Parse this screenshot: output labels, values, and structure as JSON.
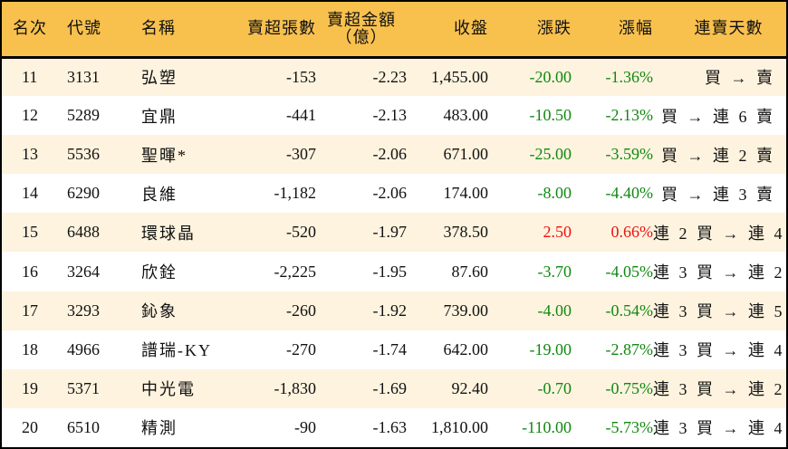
{
  "header": {
    "rank": "名次",
    "code": "代號",
    "name": "名稱",
    "net_sell_volume": "賣超張數",
    "net_sell_amount_line1": "賣超金額",
    "net_sell_amount_line2": "（億）",
    "close": "收盤",
    "change": "漲跌",
    "change_pct": "漲幅",
    "streak": "連賣天數"
  },
  "colors": {
    "header_bg": "#f8c14e",
    "row_alt_bg": "#fdf3df",
    "row_bg": "#ffffff",
    "down": "#118811",
    "up": "#ee1111",
    "border": "#000000"
  },
  "rows": [
    {
      "rank": "11",
      "code": "3131",
      "name": "弘塑",
      "volume": "-153",
      "amount": "-2.23",
      "close": "1,455.00",
      "change": "-20.00",
      "pct": "-1.36%",
      "direction": "down",
      "streak": "買 → 賣"
    },
    {
      "rank": "12",
      "code": "5289",
      "name": "宜鼎",
      "volume": "-441",
      "amount": "-2.13",
      "close": "483.00",
      "change": "-10.50",
      "pct": "-2.13%",
      "direction": "down",
      "streak": "買 → 連 6 賣"
    },
    {
      "rank": "13",
      "code": "5536",
      "name": "聖暉*",
      "volume": "-307",
      "amount": "-2.06",
      "close": "671.00",
      "change": "-25.00",
      "pct": "-3.59%",
      "direction": "down",
      "streak": "買 → 連 2 賣"
    },
    {
      "rank": "14",
      "code": "6290",
      "name": "良維",
      "volume": "-1,182",
      "amount": "-2.06",
      "close": "174.00",
      "change": "-8.00",
      "pct": "-4.40%",
      "direction": "down",
      "streak": "買 → 連 3 賣"
    },
    {
      "rank": "15",
      "code": "6488",
      "name": "環球晶",
      "volume": "-520",
      "amount": "-1.97",
      "close": "378.50",
      "change": "2.50",
      "pct": "0.66%",
      "direction": "up",
      "streak": "連 2 買 → 連 4 賣"
    },
    {
      "rank": "16",
      "code": "3264",
      "name": "欣銓",
      "volume": "-2,225",
      "amount": "-1.95",
      "close": "87.60",
      "change": "-3.70",
      "pct": "-4.05%",
      "direction": "down",
      "streak": "連 3 買 → 連 2 賣"
    },
    {
      "rank": "17",
      "code": "3293",
      "name": "鈊象",
      "volume": "-260",
      "amount": "-1.92",
      "close": "739.00",
      "change": "-4.00",
      "pct": "-0.54%",
      "direction": "down",
      "streak": "連 3 買 → 連 5 賣"
    },
    {
      "rank": "18",
      "code": "4966",
      "name": "譜瑞-KY",
      "volume": "-270",
      "amount": "-1.74",
      "close": "642.00",
      "change": "-19.00",
      "pct": "-2.87%",
      "direction": "down",
      "streak": "連 3 買 → 連 4 賣"
    },
    {
      "rank": "19",
      "code": "5371",
      "name": "中光電",
      "volume": "-1,830",
      "amount": "-1.69",
      "close": "92.40",
      "change": "-0.70",
      "pct": "-0.75%",
      "direction": "down",
      "streak": "連 3 買 → 連 2 賣"
    },
    {
      "rank": "20",
      "code": "6510",
      "name": "精測",
      "volume": "-90",
      "amount": "-1.63",
      "close": "1,810.00",
      "change": "-110.00",
      "pct": "-5.73%",
      "direction": "down",
      "streak": "連 3 買 → 連 4 賣"
    }
  ]
}
